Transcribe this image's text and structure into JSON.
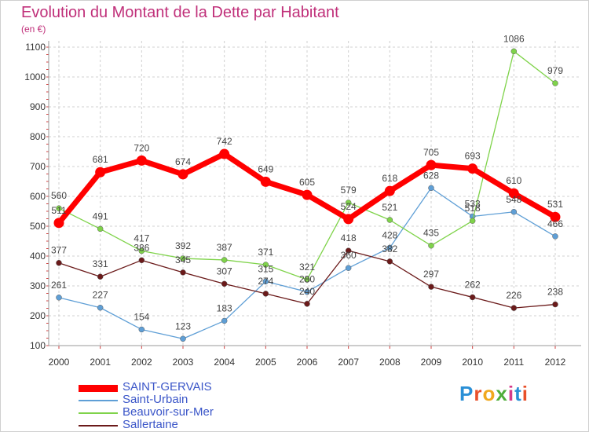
{
  "chart_data": {
    "type": "line",
    "title": "Evolution du Montant de la Dette par Habitant",
    "subtitle": "(en €)",
    "x": [
      "2000",
      "2001",
      "2002",
      "2003",
      "2004",
      "2005",
      "2006",
      "2007",
      "2008",
      "2009",
      "2010",
      "2011",
      "2012"
    ],
    "ylim": [
      100,
      1100
    ],
    "yticks": [
      100,
      200,
      300,
      400,
      500,
      600,
      700,
      800,
      900,
      1000,
      1100
    ],
    "grid": true,
    "legend_position": "bottom-left",
    "series": [
      {
        "name": "SAINT-GERVAIS",
        "color": "#ff0000",
        "values": [
          511,
          681,
          720,
          674,
          742,
          649,
          605,
          524,
          618,
          705,
          693,
          610,
          531
        ]
      },
      {
        "name": "Saint-Urbain",
        "color": "#5f9fd6",
        "values": [
          261,
          227,
          154,
          123,
          183,
          315,
          280,
          360,
          428,
          628,
          533,
          548,
          466
        ]
      },
      {
        "name": "Beauvoir-sur-Mer",
        "color": "#7fd34a",
        "values": [
          560,
          491,
          417,
          392,
          387,
          371,
          321,
          579,
          521,
          435,
          518,
          1086,
          979
        ]
      },
      {
        "name": "Sallertaine",
        "color": "#6b1a1a",
        "values": [
          377,
          331,
          386,
          345,
          307,
          274,
          240,
          418,
          382,
          297,
          262,
          226,
          238
        ]
      }
    ]
  },
  "logo": {
    "letters": [
      "P",
      "r",
      "o",
      "x",
      "i",
      "t",
      "i"
    ],
    "colors": [
      "#2a8fd6",
      "#e8502a",
      "#f0a81e",
      "#4fae3a",
      "#d63a8a",
      "#2a8fd6",
      "#e8502a"
    ]
  }
}
